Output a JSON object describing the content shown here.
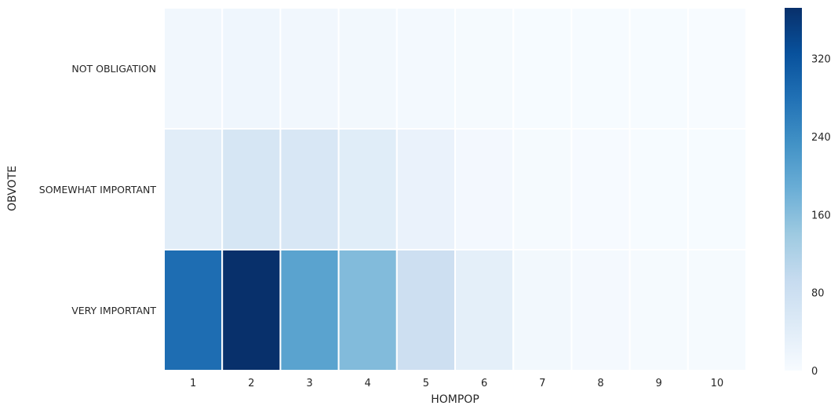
{
  "chart_data": {
    "type": "heatmap",
    "title": "",
    "xlabel": "HOMPOP",
    "ylabel": "OBVOTE",
    "x_categories": [
      "1",
      "2",
      "3",
      "4",
      "5",
      "6",
      "7",
      "8",
      "9",
      "10"
    ],
    "y_categories": [
      "NOT OBLIGATION",
      "SOMEWHAT IMPORTANT",
      "VERY IMPORTANT"
    ],
    "values": [
      [
        12,
        14,
        11,
        9,
        7,
        3,
        1,
        1,
        1,
        0
      ],
      [
        40,
        62,
        58,
        42,
        25,
        8,
        4,
        2,
        1,
        1
      ],
      [
        285,
        372,
        205,
        165,
        80,
        35,
        10,
        6,
        4,
        3
      ]
    ],
    "colorbar": {
      "min": 0,
      "max": 372,
      "ticks": [
        "0",
        "80",
        "160",
        "240",
        "320"
      ],
      "colormap": "Blues"
    },
    "cell_separator_color": "#ffffff",
    "grid": false
  }
}
